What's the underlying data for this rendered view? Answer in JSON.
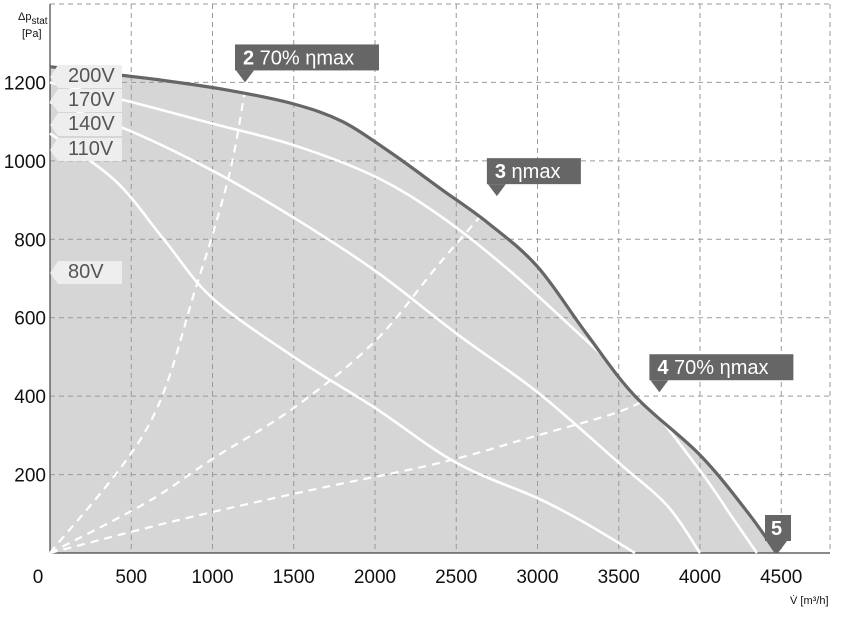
{
  "chart_data": {
    "type": "line",
    "xlabel": {
      "symbol": "V̇",
      "unit": "[m³/h]"
    },
    "ylabel": {
      "symbol": "Δp",
      "sub": "stat",
      "unit": "[Pa]"
    },
    "xlim": [
      0,
      4800
    ],
    "ylim": [
      0,
      1400
    ],
    "x_origin_label": "0",
    "x_ticks": [
      500,
      1000,
      1500,
      2000,
      2500,
      3000,
      3500,
      4000,
      4500
    ],
    "y_ticks": [
      200,
      400,
      600,
      800,
      1000,
      1200
    ],
    "grid": true,
    "region_fill": "#d6d6d6",
    "low_region_fill": "#eeeeee",
    "series": [
      {
        "name": "200V",
        "color": "#666666",
        "width": 3.2,
        "points": [
          [
            0,
            1240
          ],
          [
            300,
            1225
          ],
          [
            700,
            1205
          ],
          [
            1100,
            1180
          ],
          [
            1500,
            1145
          ],
          [
            1800,
            1100
          ],
          [
            2100,
            1020
          ],
          [
            2400,
            930
          ],
          [
            2700,
            840
          ],
          [
            3000,
            730
          ],
          [
            3300,
            560
          ],
          [
            3600,
            400
          ],
          [
            4000,
            250
          ],
          [
            4300,
            100
          ],
          [
            4470,
            0
          ]
        ]
      },
      {
        "name": "170V",
        "color": "#ffffff",
        "width": 2.6,
        "points": [
          [
            0,
            1200
          ],
          [
            500,
            1150
          ],
          [
            1000,
            1095
          ],
          [
            1500,
            1040
          ],
          [
            2000,
            960
          ],
          [
            2400,
            860
          ],
          [
            2800,
            730
          ],
          [
            3200,
            580
          ],
          [
            3600,
            420
          ],
          [
            4000,
            210
          ],
          [
            4200,
            90
          ],
          [
            4350,
            0
          ]
        ]
      },
      {
        "name": "140V",
        "color": "#ffffff",
        "width": 2.6,
        "points": [
          [
            0,
            1150
          ],
          [
            500,
            1075
          ],
          [
            1000,
            975
          ],
          [
            1500,
            855
          ],
          [
            2000,
            720
          ],
          [
            2500,
            560
          ],
          [
            3000,
            410
          ],
          [
            3500,
            230
          ],
          [
            3800,
            120
          ],
          [
            4000,
            0
          ]
        ]
      },
      {
        "name": "110V",
        "color": "#ffffff",
        "width": 2.6,
        "points": [
          [
            0,
            1070
          ],
          [
            400,
            950
          ],
          [
            700,
            800
          ],
          [
            1000,
            650
          ],
          [
            1500,
            500
          ],
          [
            2000,
            370
          ],
          [
            2500,
            230
          ],
          [
            3000,
            140
          ],
          [
            3300,
            75
          ],
          [
            3600,
            0
          ]
        ]
      }
    ],
    "low_region_80V": [
      [
        0,
        680
      ],
      [
        300,
        700
      ],
      [
        500,
        640
      ],
      [
        700,
        480
      ],
      [
        900,
        380
      ],
      [
        1200,
        270
      ],
      [
        1600,
        190
      ],
      [
        2000,
        120
      ],
      [
        2400,
        40
      ],
      [
        2600,
        0
      ]
    ],
    "low_label": "80V",
    "efficiency_lines": [
      {
        "points": [
          [
            0,
            0
          ],
          [
            600,
            320
          ],
          [
            900,
            680
          ],
          [
            1100,
            960
          ],
          [
            1200,
            1180
          ]
        ]
      },
      {
        "points": [
          [
            0,
            0
          ],
          [
            600,
            130
          ],
          [
            1000,
            240
          ],
          [
            1500,
            370
          ],
          [
            2000,
            540
          ],
          [
            2400,
            740
          ],
          [
            2800,
            930
          ]
        ]
      },
      {
        "points": [
          [
            0,
            0
          ],
          [
            800,
            85
          ],
          [
            1600,
            160
          ],
          [
            2400,
            230
          ],
          [
            3000,
            300
          ],
          [
            3500,
            360
          ],
          [
            3750,
            410
          ]
        ]
      }
    ],
    "markers": [
      {
        "num": "2",
        "text": " 70% ηmax",
        "x": 1200,
        "y": 1200
      },
      {
        "num": "3",
        "text": " ηmax",
        "x": 2750,
        "y": 910
      },
      {
        "num": "4",
        "text": " 70% ηmax",
        "x": 3750,
        "y": 410
      },
      {
        "num": "5",
        "text": "",
        "x": 4480,
        "y": 0
      }
    ]
  }
}
